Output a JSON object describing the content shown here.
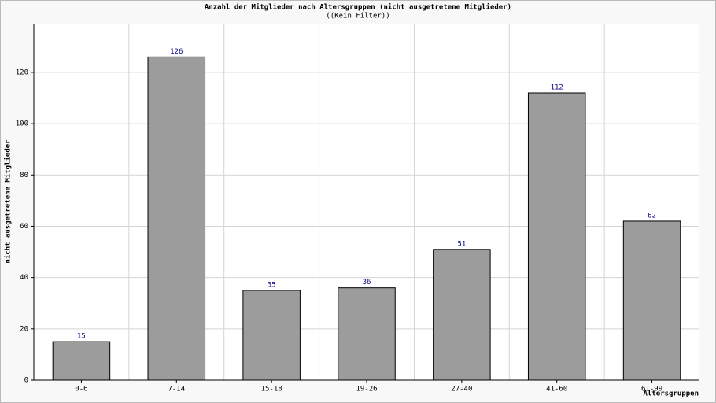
{
  "chart_data": {
    "type": "bar",
    "title": "Anzahl der Mitglieder nach Altersgruppen (nicht ausgetretene Mitglieder)",
    "subtitle": "((Kein Filter))",
    "x_label": "Altersgruppen",
    "y_label": "nicht ausgetretene Mitglieder",
    "categories": [
      "0-6",
      "7-14",
      "15-18",
      "19-26",
      "27-40",
      "41-60",
      "61-99"
    ],
    "values": [
      15,
      126,
      35,
      36,
      51,
      112,
      62
    ],
    "color": "#9c9c9c",
    "label_color": "#00008b",
    "ylim": [
      0,
      139
    ],
    "yticks": [
      0,
      20,
      40,
      60,
      80,
      100,
      120
    ],
    "grid": true
  }
}
